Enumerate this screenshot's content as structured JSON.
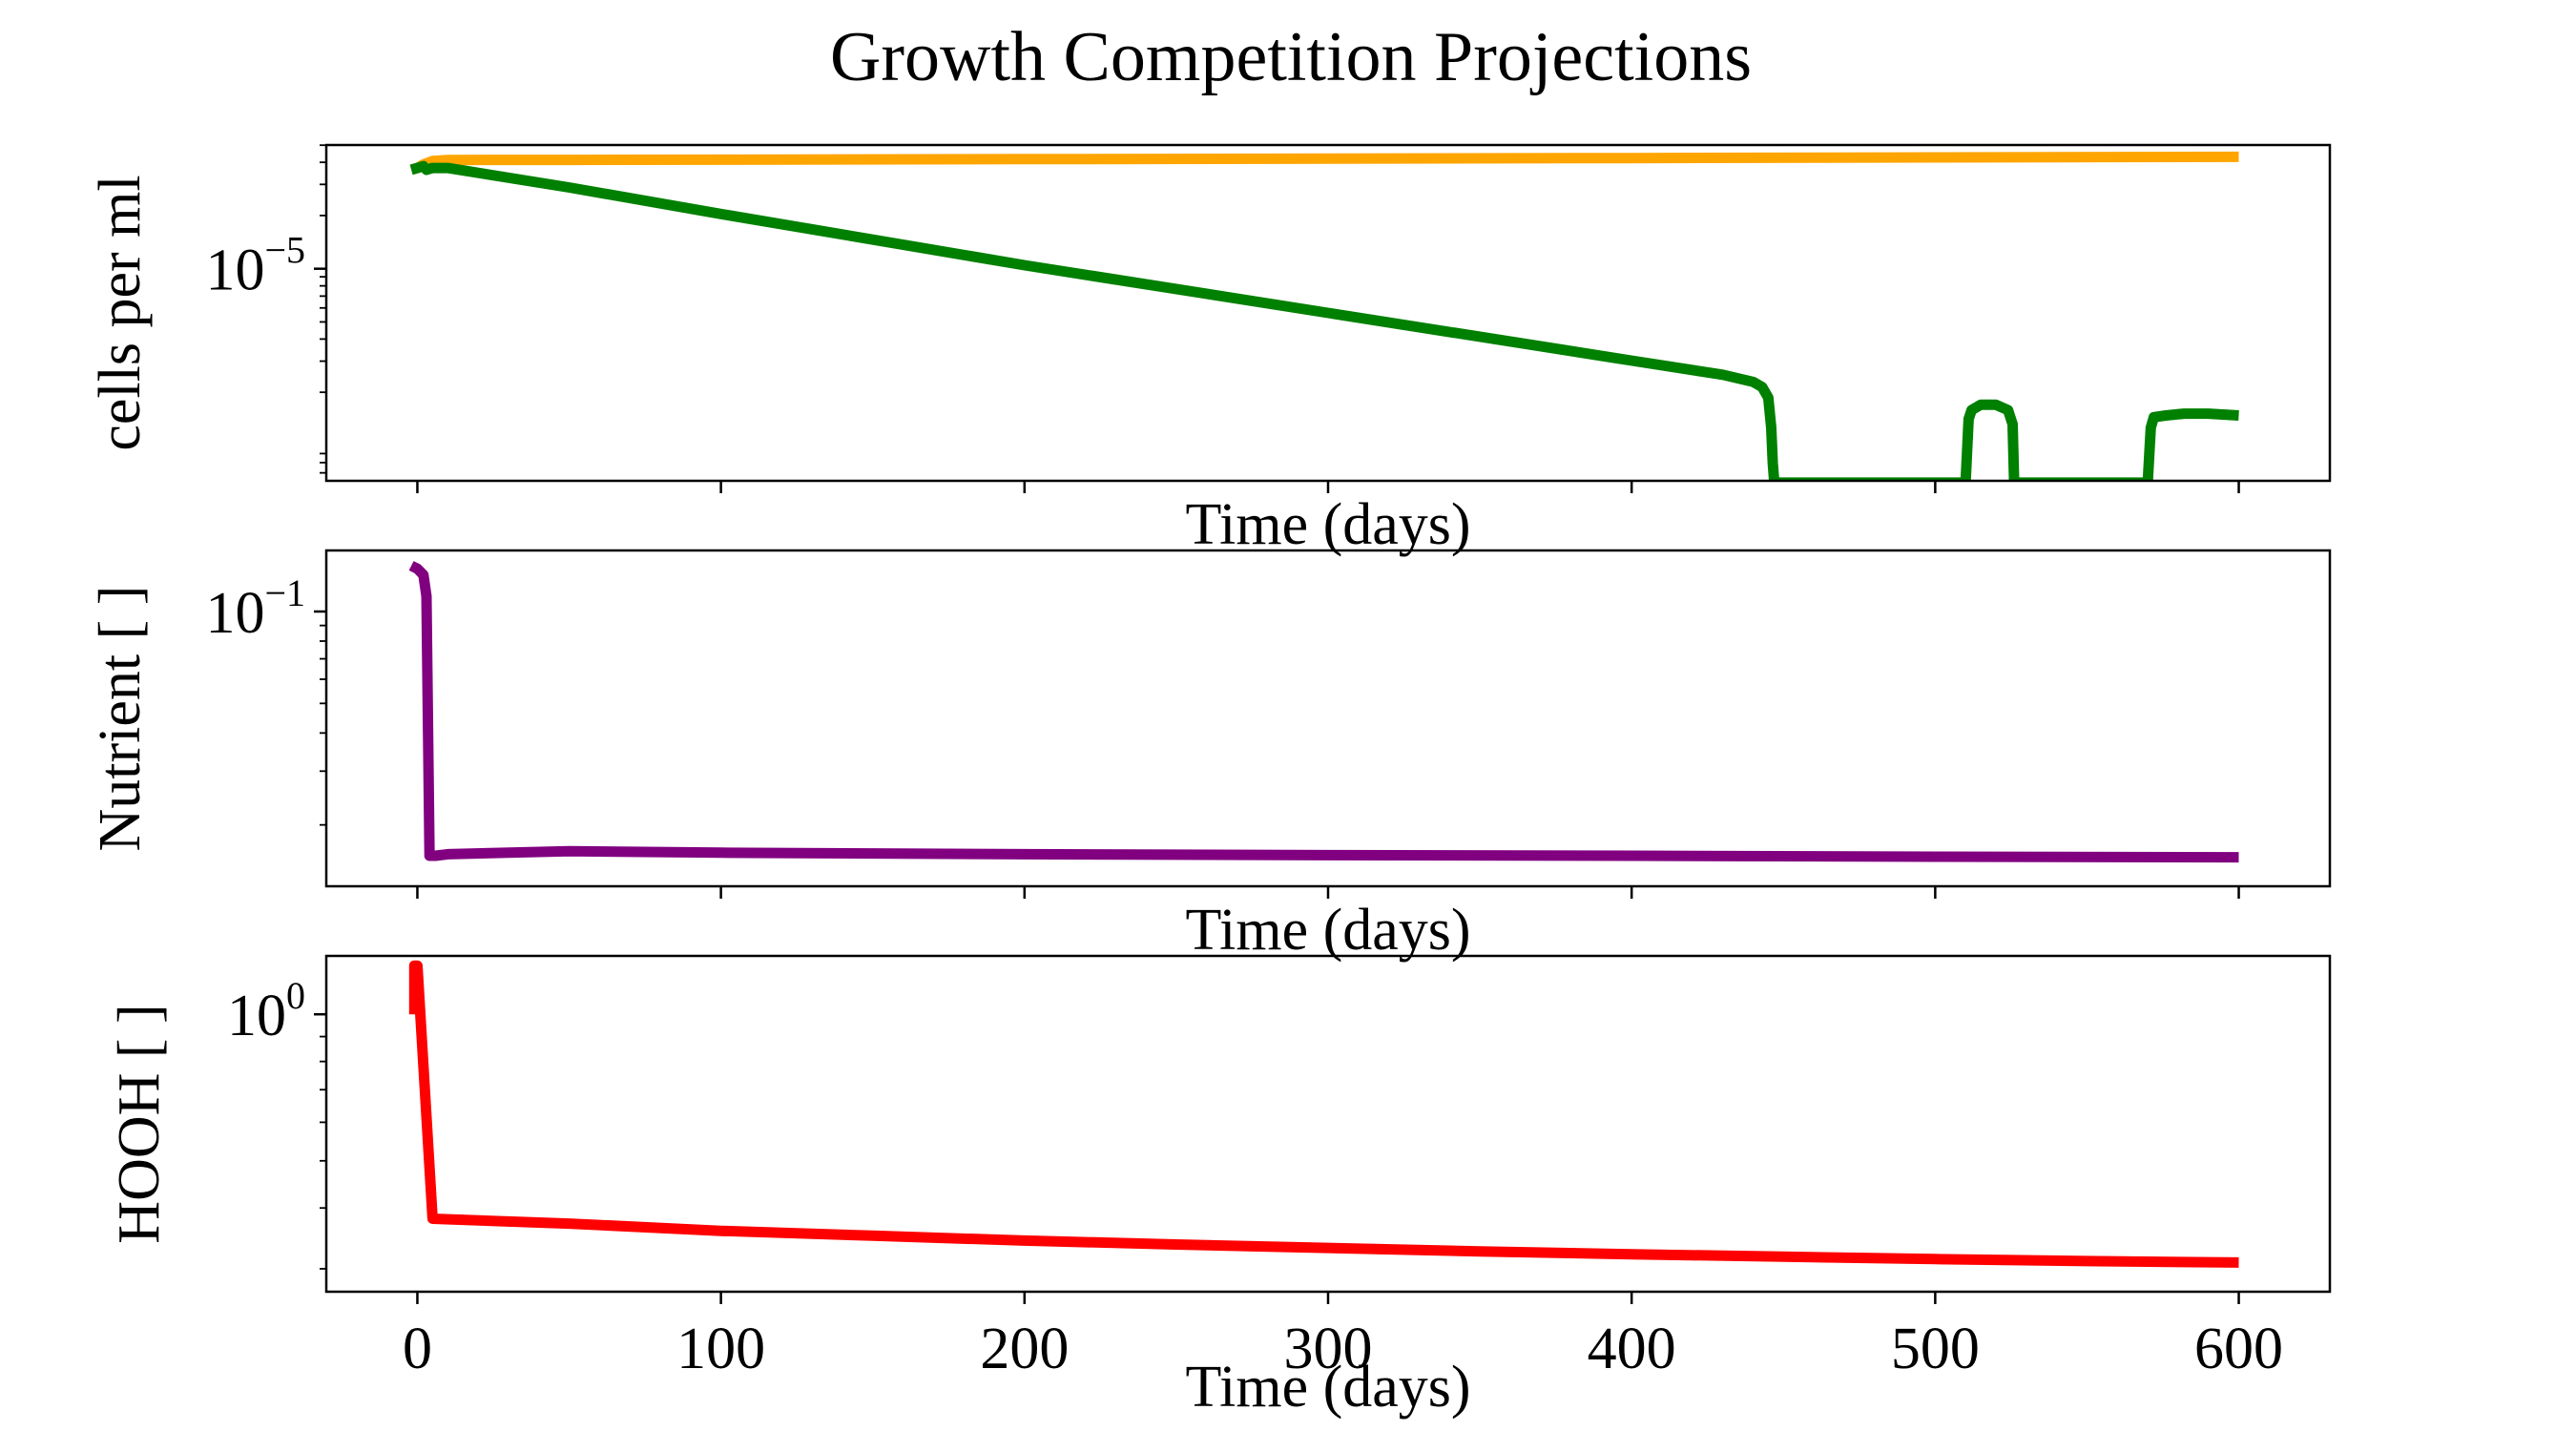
{
  "figure": {
    "title": "Growth Competition Projections"
  },
  "chart_data": [
    {
      "type": "line",
      "title": "",
      "xlabel": "Time (days)",
      "ylabel": "cells per ml",
      "x_scale": "linear",
      "y_scale": "log",
      "xlim": [
        -30,
        630
      ],
      "ylim_log10": [
        -6.2,
        -4.3
      ],
      "x_ticks": [
        0,
        100,
        200,
        300,
        400,
        500,
        600
      ],
      "x_tick_labels_visible": false,
      "y_ticks": [
        {
          "log10": -5,
          "base": "10",
          "exp": "−5"
        }
      ],
      "grid": false,
      "legend": "none",
      "series": [
        {
          "color": "#ffa500",
          "x": [
            -2,
            0,
            2,
            5,
            10,
            50,
            100,
            200,
            300,
            400,
            500,
            600
          ],
          "y_log10": [
            -4.44,
            -4.43,
            -4.41,
            -4.39,
            -4.385,
            -4.384,
            -4.383,
            -4.38,
            -4.377,
            -4.374,
            -4.37,
            -4.367
          ]
        },
        {
          "color": "#008000",
          "x": [
            -2,
            0,
            2,
            3,
            5,
            10,
            50,
            100,
            200,
            300,
            400,
            430,
            440,
            443,
            445,
            446,
            446.5,
            447,
            510,
            511,
            512,
            515,
            520,
            524,
            525.5,
            526,
            570,
            571,
            572,
            576,
            582,
            590,
            600
          ],
          "y_log10": [
            -4.44,
            -4.43,
            -4.42,
            -4.44,
            -4.43,
            -4.43,
            -4.54,
            -4.69,
            -4.98,
            -5.25,
            -5.52,
            -5.6,
            -5.64,
            -5.67,
            -5.73,
            -5.9,
            -6.1,
            -6.21,
            -6.21,
            -5.85,
            -5.8,
            -5.77,
            -5.77,
            -5.8,
            -5.88,
            -6.21,
            -6.21,
            -5.9,
            -5.84,
            -5.83,
            -5.82,
            -5.82,
            -5.83
          ]
        }
      ]
    },
    {
      "type": "line",
      "title": "",
      "xlabel": "Time (days)",
      "ylabel": "Nutrient [ ]",
      "x_scale": "linear",
      "y_scale": "log",
      "xlim": [
        -30,
        630
      ],
      "ylim_log10": [
        -1.9,
        -0.8
      ],
      "x_ticks": [
        0,
        100,
        200,
        300,
        400,
        500,
        600
      ],
      "x_tick_labels_visible": false,
      "y_ticks": [
        {
          "log10": -1,
          "base": "10",
          "exp": "−1"
        }
      ],
      "grid": false,
      "legend": "none",
      "series": [
        {
          "color": "#800080",
          "x": [
            -2,
            0,
            2,
            3,
            4,
            5,
            6,
            10,
            50,
            100,
            200,
            300,
            400,
            500,
            600
          ],
          "y_log10": [
            -0.85,
            -0.86,
            -0.88,
            -0.95,
            -1.8,
            -1.8,
            -1.8,
            -1.795,
            -1.785,
            -1.79,
            -1.795,
            -1.798,
            -1.8,
            -1.803,
            -1.805
          ]
        }
      ]
    },
    {
      "type": "line",
      "title": "",
      "xlabel": "Time (days)",
      "ylabel": "HOOH [ ]",
      "x_scale": "linear",
      "y_scale": "log",
      "xlim": [
        -30,
        630
      ],
      "ylim_log10": [
        -0.57,
        0.12
      ],
      "x_ticks": [
        0,
        100,
        200,
        300,
        400,
        500,
        600
      ],
      "x_tick_labels": [
        "0",
        "100",
        "200",
        "300",
        "400",
        "500",
        "600"
      ],
      "x_tick_labels_visible": true,
      "y_ticks": [
        {
          "log10": 0,
          "base": "10",
          "exp": "0"
        }
      ],
      "grid": false,
      "legend": "none",
      "series": [
        {
          "color": "#ff0000",
          "x": [
            -1,
            -1,
            0,
            5,
            50,
            100,
            150,
            200,
            250,
            300,
            350,
            400,
            450,
            500,
            550,
            600
          ],
          "y_log10": [
            0.0,
            0.1,
            0.1,
            -0.42,
            -0.43,
            -0.445,
            -0.455,
            -0.465,
            -0.473,
            -0.48,
            -0.487,
            -0.493,
            -0.498,
            -0.503,
            -0.507,
            -0.51
          ]
        }
      ]
    }
  ]
}
